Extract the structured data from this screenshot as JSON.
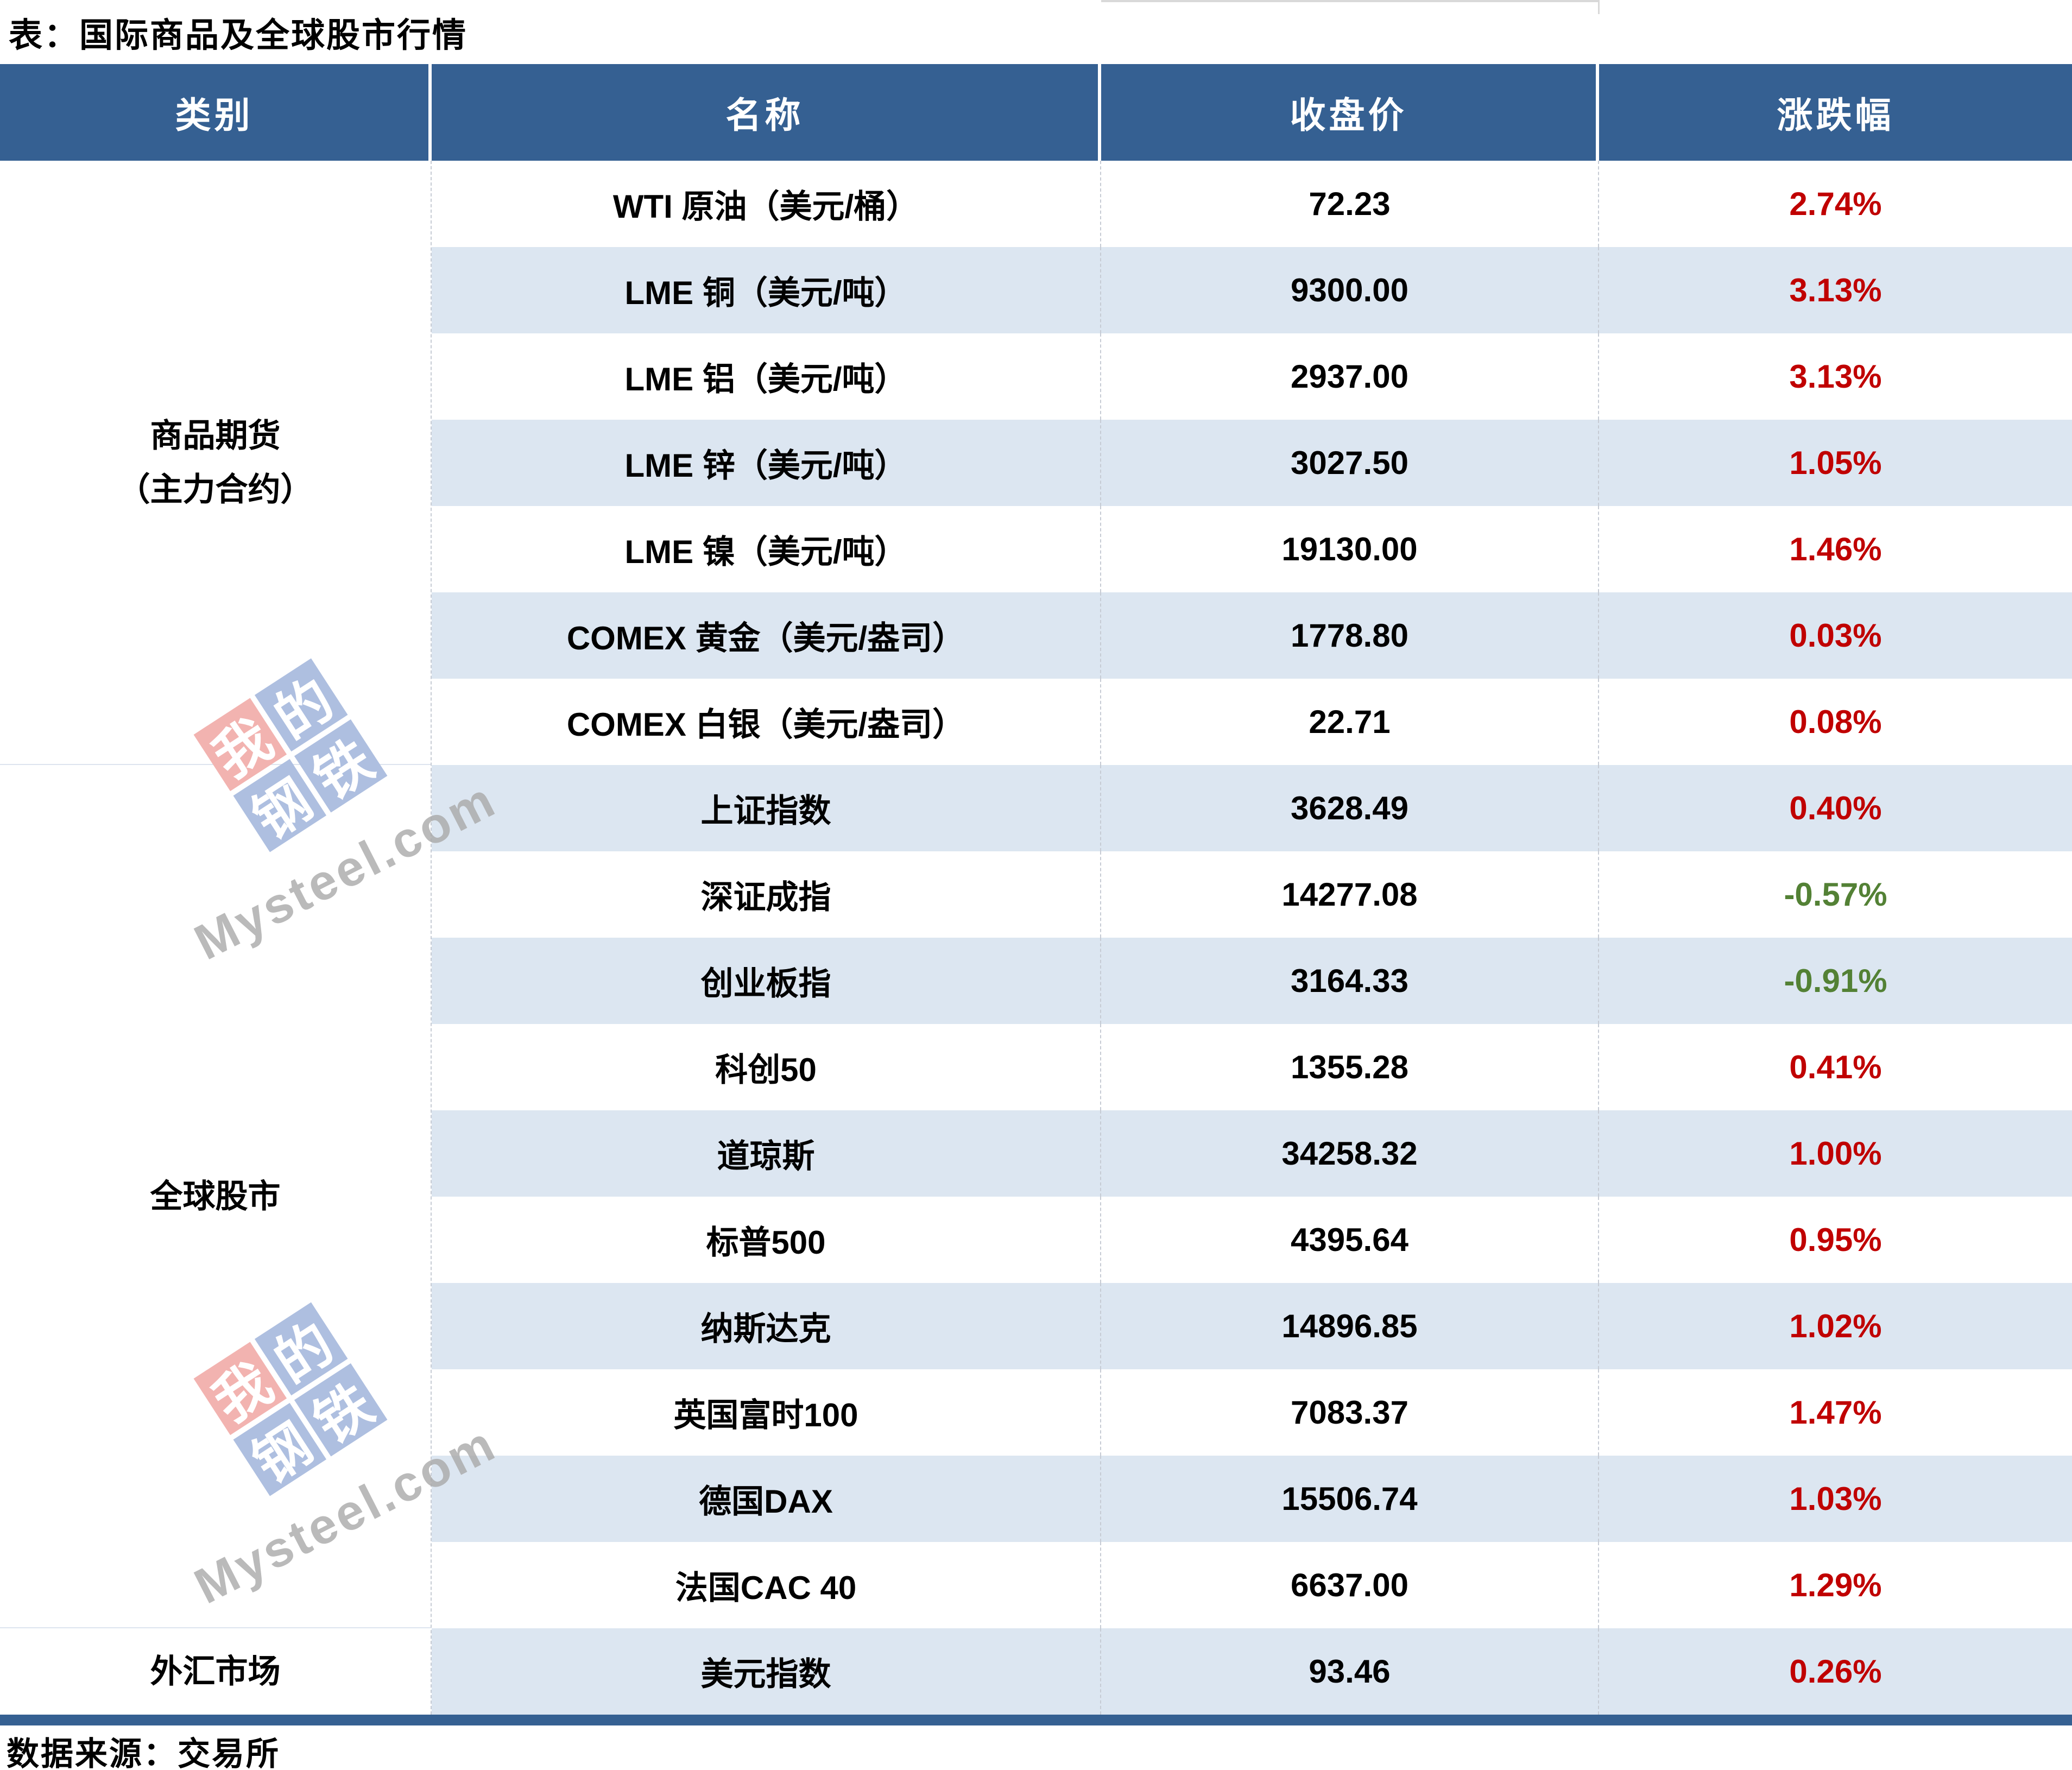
{
  "source_note": "数据来源：交易所",
  "chart_data": {
    "type": "table",
    "title": "表：国际商品及全球股市行情",
    "columns": [
      "类别",
      "名称",
      "收盘价",
      "涨跌幅"
    ],
    "groups": [
      {
        "label": "商品期货（主力合约）",
        "label_line1": "商品期货",
        "label_line2": "（主力合约）",
        "row_count": 7
      },
      {
        "label": "全球股市",
        "row_count": 10
      },
      {
        "label": "外汇市场",
        "row_count": 1
      }
    ],
    "rows": [
      {
        "category": "商品期货（主力合约）",
        "name": "WTI 原油（美元/桶）",
        "close": "72.23",
        "change": "2.74%"
      },
      {
        "category": "商品期货（主力合约）",
        "name": "LME 铜（美元/吨）",
        "close": "9300.00",
        "change": "3.13%"
      },
      {
        "category": "商品期货（主力合约）",
        "name": "LME 铝（美元/吨）",
        "close": "2937.00",
        "change": "3.13%"
      },
      {
        "category": "商品期货（主力合约）",
        "name": "LME 锌（美元/吨）",
        "close": "3027.50",
        "change": "1.05%"
      },
      {
        "category": "商品期货（主力合约）",
        "name": "LME 镍（美元/吨）",
        "close": "19130.00",
        "change": "1.46%"
      },
      {
        "category": "商品期货（主力合约）",
        "name": "COMEX 黄金（美元/盎司）",
        "close": "1778.80",
        "change": "0.03%"
      },
      {
        "category": "商品期货（主力合约）",
        "name": "COMEX 白银（美元/盎司）",
        "close": "22.71",
        "change": "0.08%"
      },
      {
        "category": "全球股市",
        "name": "上证指数",
        "close": "3628.49",
        "change": "0.40%"
      },
      {
        "category": "全球股市",
        "name": "深证成指",
        "close": "14277.08",
        "change": "-0.57%"
      },
      {
        "category": "全球股市",
        "name": "创业板指",
        "close": "3164.33",
        "change": "-0.91%"
      },
      {
        "category": "全球股市",
        "name": "科创50",
        "close": "1355.28",
        "change": "0.41%"
      },
      {
        "category": "全球股市",
        "name": "道琼斯",
        "close": "34258.32",
        "change": "1.00%"
      },
      {
        "category": "全球股市",
        "name": "标普500",
        "close": "4395.64",
        "change": "0.95%"
      },
      {
        "category": "全球股市",
        "name": "纳斯达克",
        "close": "14896.85",
        "change": "1.02%"
      },
      {
        "category": "全球股市",
        "name": "英国富时100",
        "close": "7083.37",
        "change": "1.47%"
      },
      {
        "category": "全球股市",
        "name": "德国DAX",
        "close": "15506.74",
        "change": "1.03%"
      },
      {
        "category": "全球股市",
        "name": "法国CAC 40",
        "close": "6637.00",
        "change": "1.29%"
      },
      {
        "category": "外汇市场",
        "name": "美元指数",
        "close": "93.46",
        "change": "0.26%"
      }
    ],
    "layout": {
      "stripe_rows": true,
      "legend_position": "none",
      "grid": "dashed-column-separators"
    }
  },
  "watermark": {
    "tiles": [
      "我",
      "的",
      "钢",
      "铁"
    ],
    "text": "Mysteel.com",
    "tile_red": "#F2B3B0",
    "tile_blue": "#AEBFE0",
    "text_color": "#A9A9A9"
  },
  "colors": {
    "header_bg": "#356092",
    "header_text": "#FFFFFF",
    "row_stripe": "#DCE6F1",
    "positive_change": "#C00000",
    "negative_change": "#538135",
    "bottom_bar": "#356092"
  }
}
